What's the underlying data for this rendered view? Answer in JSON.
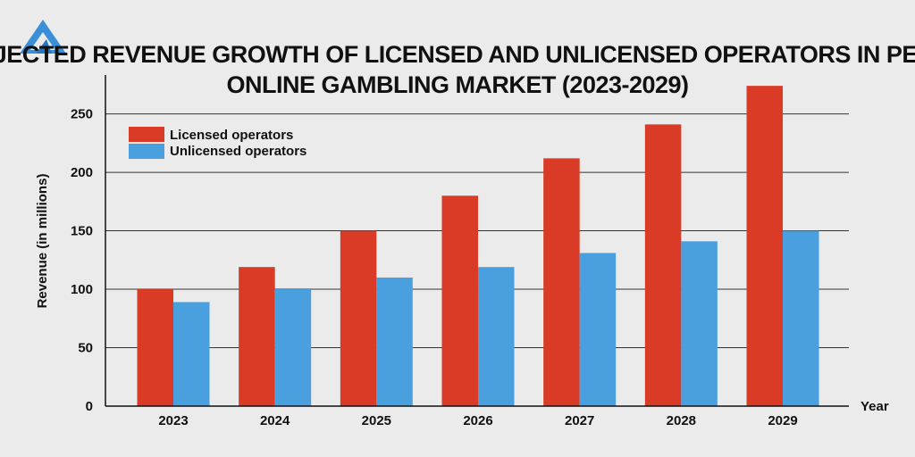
{
  "chart_data": {
    "type": "bar",
    "title_lines": [
      "PROJECTED REVENUE GROWTH OF LICENSED AND UNLICENSED OPERATORS IN PERU'S",
      "ONLINE GAMBLING MARKET  (2023-2029)"
    ],
    "categories": [
      "2023",
      "2024",
      "2025",
      "2026",
      "2027",
      "2028",
      "2029"
    ],
    "series": [
      {
        "name": "Licensed operators",
        "color": "#d93b26",
        "values": [
          100,
          119,
          150,
          180,
          212,
          241,
          274
        ]
      },
      {
        "name": "Unlicensed operators",
        "color": "#4a9fdf",
        "values": [
          89,
          100,
          110,
          119,
          131,
          141,
          150
        ]
      }
    ],
    "xlabel": "Year",
    "ylabel": "Revenue (in millions)",
    "ylim": [
      0,
      280
    ],
    "yticks": [
      0,
      50,
      100,
      150,
      200,
      250
    ],
    "grid": true,
    "legend_position": "top-left"
  },
  "logo": {
    "icon": "triangle-logo-icon",
    "color": "#3a8fd8"
  }
}
